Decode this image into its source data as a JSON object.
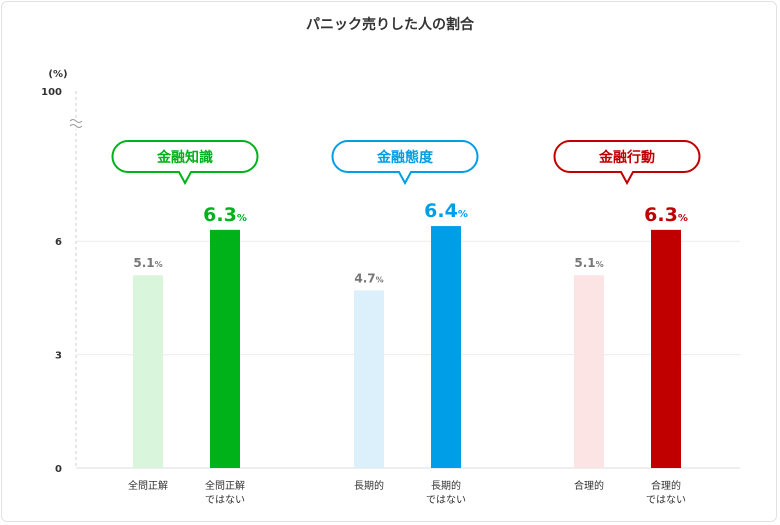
{
  "chart_data": {
    "type": "bar",
    "title": "パニック売りした人の割合",
    "yunit": "(%)",
    "yticks": [
      0,
      3,
      6,
      100
    ],
    "ylim": [
      0,
      100
    ],
    "axis_break": true,
    "grid": true,
    "groups": [
      {
        "label": "金融知識",
        "color": "#00b219",
        "light": "#d9f5dc",
        "categories": [
          "全問正解",
          "全問正解\nではない"
        ],
        "values": [
          5.1,
          6.3
        ]
      },
      {
        "label": "金融態度",
        "color": "#009ee6",
        "light": "#dbf0fb",
        "categories": [
          "長期的",
          "長期的\nではない"
        ],
        "values": [
          4.7,
          6.4
        ]
      },
      {
        "label": "金融行動",
        "color": "#c00000",
        "light": "#fde4e4",
        "categories": [
          "合理的",
          "合理的\nではない"
        ],
        "values": [
          5.1,
          6.3
        ]
      }
    ],
    "value_suffix": "%"
  }
}
